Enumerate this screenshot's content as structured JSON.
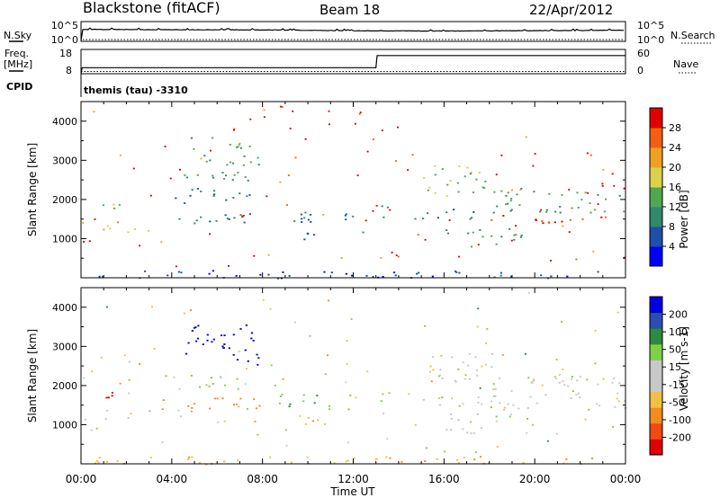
{
  "header": {
    "station": "Blackstone (fitACF)",
    "beam": "Beam 18",
    "date": "22/Apr/2012"
  },
  "side_labels": {
    "nsky": "N.Sky",
    "nsearch": "N.Search",
    "freq": "Freq.",
    "mhz": "[MHz]",
    "cpid": "CPID",
    "nave": "Nave"
  },
  "axes": {
    "noise_left_ticks": [
      "10^5",
      "10^0"
    ],
    "noise_right_ticks": [
      "10^5",
      "10^0"
    ],
    "freq_ticks": [
      "18",
      "8"
    ],
    "nave_ticks": [
      "60",
      "0"
    ],
    "range_ticks": [
      "4000",
      "3000",
      "2000",
      "1000"
    ],
    "ylabel": "Slant Range [km]",
    "time_ticks": [
      "00:00",
      "04:00",
      "08:00",
      "12:00",
      "16:00",
      "20:00",
      "00:00"
    ],
    "xlabel": "Time UT"
  },
  "cpid_text": "themis (tau) -3310",
  "colors": {
    "power": [
      "#0000ff",
      "#1f4fa8",
      "#2e8a6a",
      "#4fa84f",
      "#d9d24a",
      "#f0a020",
      "#f06010",
      "#e00000"
    ],
    "velocity": [
      "#e00000",
      "#f04a10",
      "#f08c20",
      "#f0c040",
      "#c8c8c8",
      "#c8c8c8",
      "#7ed04a",
      "#2e8a3e",
      "#2a4fb0",
      "#0000e0"
    ]
  },
  "colorbars": {
    "power": {
      "label": "Power [dB]",
      "ticks": [
        "28",
        "24",
        "20",
        "16",
        "12",
        "8",
        "4"
      ]
    },
    "velocity": {
      "label": "Velocity [m s-1]",
      "ticks": [
        "200",
        "100",
        "50",
        "15",
        "-15",
        "-50",
        "-100",
        "-200"
      ]
    }
  },
  "chart_data": [
    {
      "type": "line",
      "title": "Blackstone (fitACF)  Beam 18  22/Apr/2012",
      "series": [
        {
          "name": "N.Sky",
          "x_hours": [
            0,
            2,
            4,
            6,
            8,
            10,
            12,
            14,
            16,
            18,
            20,
            22,
            24
          ],
          "log10_values": [
            0.8,
            0.75,
            0.7,
            0.7,
            0.65,
            0.55,
            0.45,
            0.4,
            0.35,
            0.4,
            0.45,
            0.5,
            0.6
          ]
        },
        {
          "name": "N.Search",
          "x_hours": [
            0,
            24
          ],
          "log10_values": [
            0.3,
            0.3
          ]
        }
      ],
      "ylim_log10": [
        0,
        5
      ]
    },
    {
      "type": "line",
      "series": [
        {
          "name": "Freq.",
          "x_hours": [
            0,
            0.05,
            13.0,
            13.05,
            24
          ],
          "values": [
            8,
            10.5,
            10.5,
            15.5,
            15.5
          ]
        },
        {
          "name": "Nave",
          "x_hours": [
            0,
            24
          ],
          "values": [
            1,
            1
          ]
        }
      ],
      "ylim": [
        8,
        18
      ],
      "y2lim": [
        0,
        60
      ]
    },
    {
      "type": "scatter",
      "title": "Power [dB]",
      "xlabel": "Time UT",
      "ylabel": "Slant Range [km]",
      "xlim": [
        "00:00",
        "00:00"
      ],
      "ylim": [
        0,
        4500
      ],
      "clim": [
        0,
        30
      ],
      "bands": [
        {
          "x0": 0.0,
          "x1": 0.5,
          "y0": 850,
          "y1": 1250,
          "value": 28
        },
        {
          "x0": 0.5,
          "x1": 3.0,
          "y0": 1150,
          "y1": 1400,
          "value": 18
        },
        {
          "x0": 0.8,
          "x1": 3.0,
          "y0": 1700,
          "y1": 1900,
          "value": 14
        },
        {
          "x0": 3.3,
          "x1": 8.2,
          "y0": 1400,
          "y1": 1700,
          "value": 7
        },
        {
          "x0": 3.6,
          "x1": 7.6,
          "y0": 1900,
          "y1": 2300,
          "value": 8
        },
        {
          "x0": 4.5,
          "x1": 7.8,
          "y0": 2500,
          "y1": 3600,
          "value": 12
        },
        {
          "x0": 6.8,
          "x1": 7.9,
          "y0": 1400,
          "y1": 1650,
          "value": 27
        },
        {
          "x0": 8.5,
          "x1": 12.0,
          "y0": 1400,
          "y1": 1800,
          "value": 7
        },
        {
          "x0": 9.5,
          "x1": 12.5,
          "y0": 1000,
          "y1": 1200,
          "value": 6
        },
        {
          "x0": 12.8,
          "x1": 14.0,
          "y0": 1550,
          "y1": 1850,
          "value": 12
        },
        {
          "x0": 14.5,
          "x1": 18.0,
          "y0": 1500,
          "y1": 1800,
          "value": 8
        },
        {
          "x0": 15.0,
          "x1": 18.5,
          "y0": 2100,
          "y1": 2900,
          "value": 14
        },
        {
          "x0": 18.0,
          "x1": 24.0,
          "y0": 1400,
          "y1": 1650,
          "value": 26
        },
        {
          "x0": 18.0,
          "x1": 24.0,
          "y0": 1650,
          "y1": 2300,
          "value": 12
        },
        {
          "x0": 16.0,
          "x1": 19.5,
          "y0": 800,
          "y1": 1300,
          "value": 10
        },
        {
          "x0": 0.0,
          "x1": 24.0,
          "y0": 0,
          "y1": 200,
          "value": 5
        }
      ]
    },
    {
      "type": "scatter",
      "title": "Velocity [m s-1]",
      "xlabel": "Time UT",
      "ylabel": "Slant Range [km]",
      "xlim": [
        "00:00",
        "00:00"
      ],
      "ylim": [
        0,
        4500
      ],
      "clim": [
        -250,
        250
      ],
      "bands": [
        {
          "x0": 0.0,
          "x1": 0.5,
          "y0": 850,
          "y1": 1250,
          "value": 0
        },
        {
          "x0": 0.5,
          "x1": 3.0,
          "y0": 1150,
          "y1": 1400,
          "value": 0
        },
        {
          "x0": 0.8,
          "x1": 3.0,
          "y0": 1700,
          "y1": 1900,
          "value": -230
        },
        {
          "x0": 3.3,
          "x1": 8.2,
          "y0": 1400,
          "y1": 1700,
          "value": -70
        },
        {
          "x0": 3.6,
          "x1": 7.6,
          "y0": 1900,
          "y1": 2300,
          "value": 20
        },
        {
          "x0": 4.5,
          "x1": 7.8,
          "y0": 2500,
          "y1": 3600,
          "value": 230
        },
        {
          "x0": 6.8,
          "x1": 7.9,
          "y0": 1400,
          "y1": 1650,
          "value": -60
        },
        {
          "x0": 8.5,
          "x1": 12.0,
          "y0": 1400,
          "y1": 1800,
          "value": 40
        },
        {
          "x0": 9.5,
          "x1": 12.5,
          "y0": 1000,
          "y1": 1200,
          "value": -40
        },
        {
          "x0": 12.8,
          "x1": 14.0,
          "y0": 1550,
          "y1": 1850,
          "value": 30
        },
        {
          "x0": 14.5,
          "x1": 18.0,
          "y0": 1500,
          "y1": 1800,
          "value": 0
        },
        {
          "x0": 15.0,
          "x1": 18.5,
          "y0": 2100,
          "y1": 2900,
          "value": 0
        },
        {
          "x0": 18.0,
          "x1": 24.0,
          "y0": 1400,
          "y1": 1650,
          "value": 0
        },
        {
          "x0": 18.0,
          "x1": 24.0,
          "y0": 1650,
          "y1": 2300,
          "value": 0
        },
        {
          "x0": 16.0,
          "x1": 19.5,
          "y0": 800,
          "y1": 1300,
          "value": 0
        },
        {
          "x0": 0.0,
          "x1": 24.0,
          "y0": 0,
          "y1": 200,
          "value": -40
        }
      ]
    }
  ]
}
